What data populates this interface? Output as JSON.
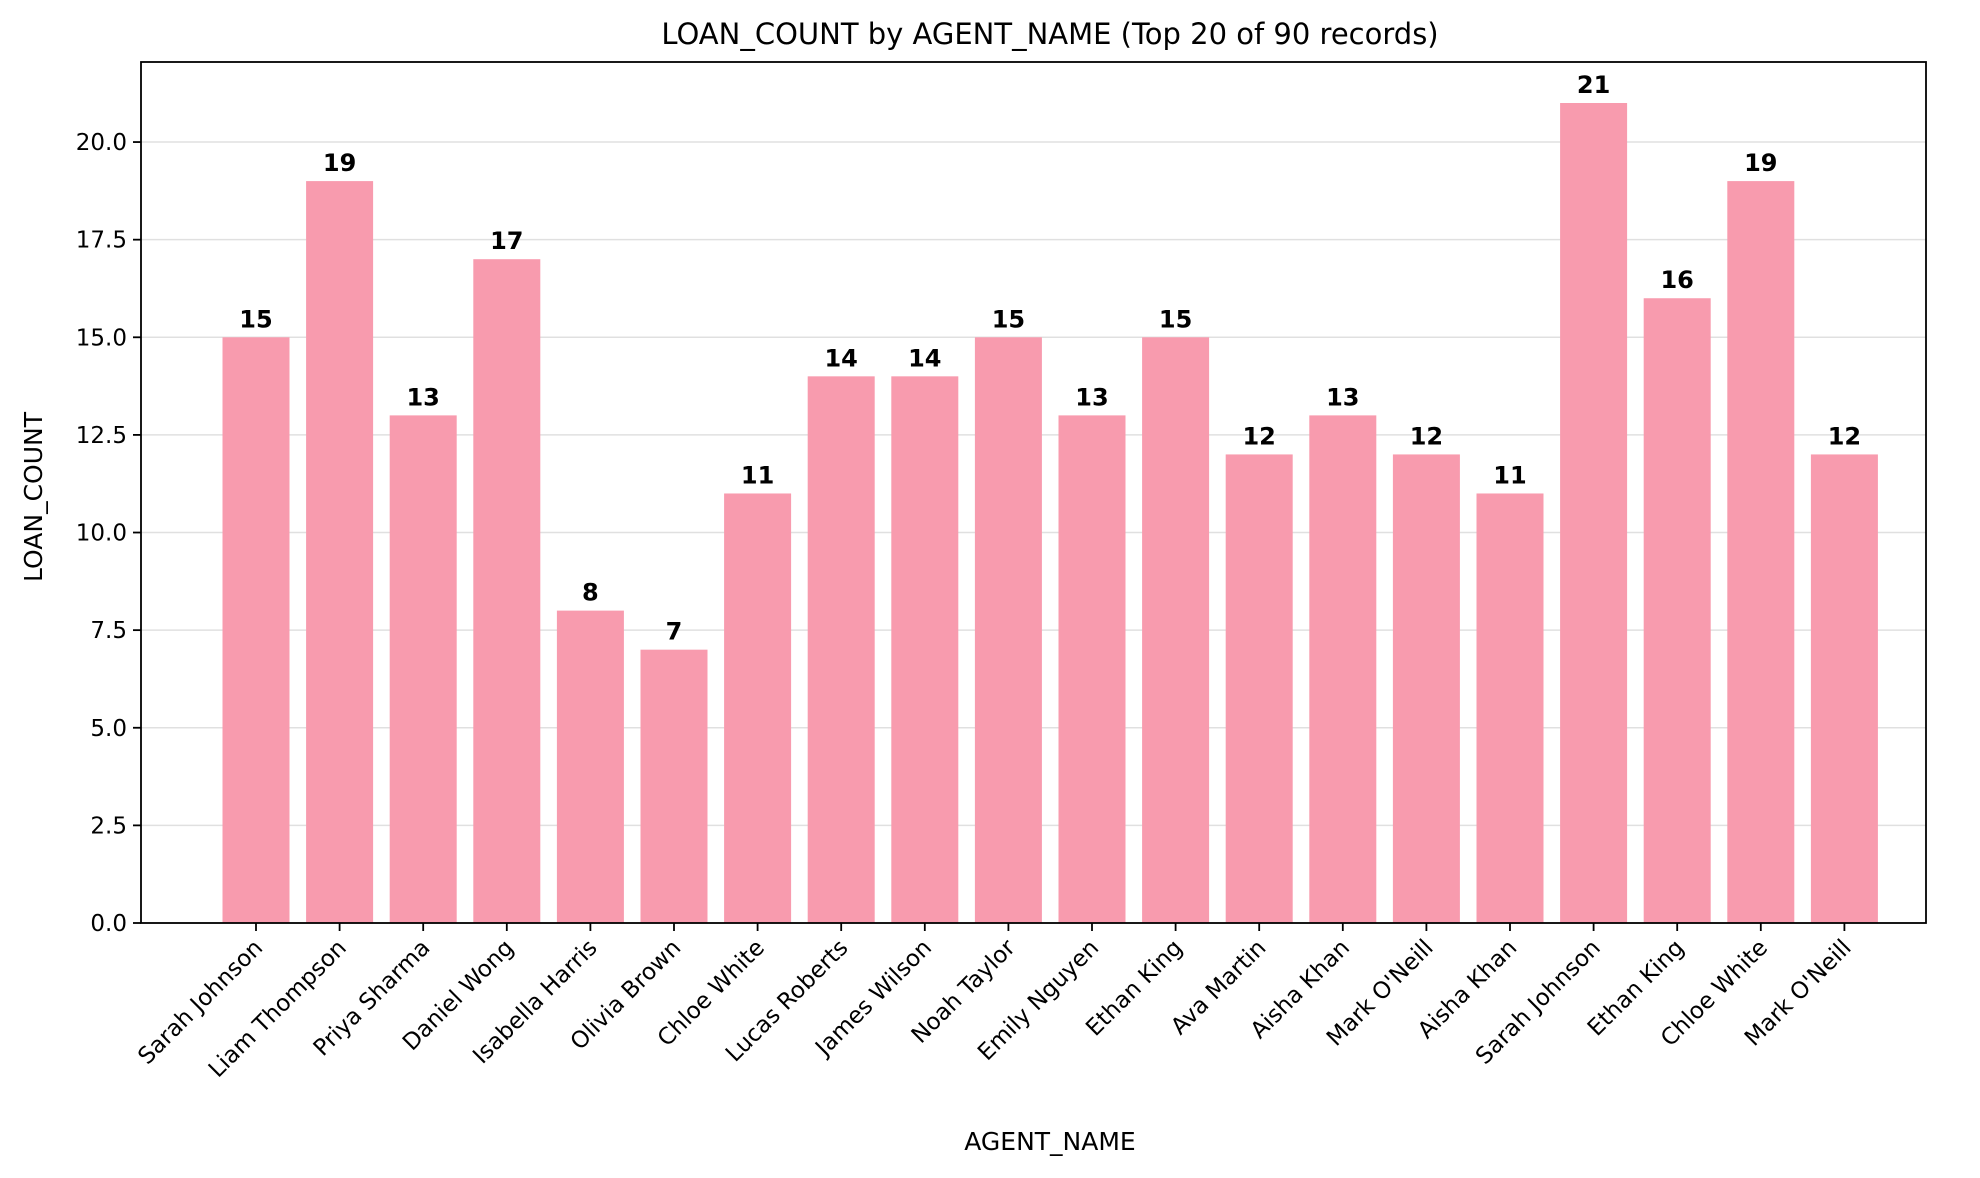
{
  "chart_data": {
    "type": "bar",
    "title": "LOAN_COUNT by AGENT_NAME (Top 20 of 90 records)",
    "xlabel": "AGENT_NAME",
    "ylabel": "LOAN_COUNT",
    "categories": [
      "Sarah Johnson",
      "Liam Thompson",
      "Priya Sharma",
      "Daniel Wong",
      "Isabella Harris",
      "Olivia Brown",
      "Chloe White",
      "Lucas Roberts",
      "James Wilson",
      "Noah Taylor",
      "Emily Nguyen",
      "Ethan King",
      "Ava Martin",
      "Aisha Khan",
      "Mark O'Neill",
      "Aisha Khan",
      "Sarah Johnson",
      "Ethan King",
      "Chloe White",
      "Mark O'Neill"
    ],
    "values": [
      15,
      19,
      13,
      17,
      8,
      7,
      11,
      14,
      14,
      15,
      13,
      15,
      12,
      13,
      12,
      11,
      21,
      16,
      19,
      12
    ],
    "ylim": [
      0,
      22.05
    ],
    "yticks": [
      0.0,
      2.5,
      5.0,
      7.5,
      10.0,
      12.5,
      15.0,
      17.5,
      20.0
    ],
    "ytick_labels": [
      "0.0",
      "2.5",
      "5.0",
      "7.5",
      "10.0",
      "12.5",
      "15.0",
      "17.5",
      "20.0"
    ],
    "grid": "y-major",
    "legend": "none",
    "bar_color": "#f89bae"
  }
}
